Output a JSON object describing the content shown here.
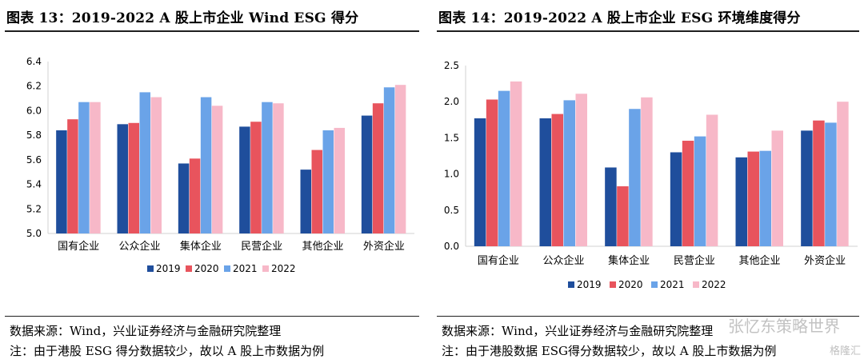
{
  "colors": {
    "2019": "#1f4e9c",
    "2020": "#e8545d",
    "2021": "#6aa3e8",
    "2022": "#f7b8c8",
    "rule": "#1f1f1f",
    "axis": "#d0d0d0"
  },
  "left": {
    "title": "图表 13：2019-2022 A 股上市企业 Wind ESG 得分",
    "note1": "数据来源：Wind，兴业证券经济与金融研究院整理",
    "note2": "注：由于港股 ESG 得分数据较少，故以 A 股上市数据为例"
  },
  "right": {
    "title": "图表 14：2019-2022 A 股上市企业 ESG 环境维度得分",
    "note1": "数据来源：Wind，兴业证券经济与金融研究院整理",
    "note2": "注：由于港股数据 ESG得分数据较少，故以 A 股上市数据为例"
  },
  "watermark": {
    "text": "张忆东策略世界",
    "source": "格隆汇"
  },
  "chart_data": [
    {
      "type": "bar",
      "title": "图表 13：2019-2022 A 股上市企业 Wind ESG 得分",
      "categories": [
        "国有企业",
        "公众企业",
        "集体企业",
        "民营企业",
        "其他企业",
        "外资企业"
      ],
      "series": [
        {
          "name": "2019",
          "values": [
            5.84,
            5.89,
            5.57,
            5.87,
            5.52,
            5.96
          ]
        },
        {
          "name": "2020",
          "values": [
            5.93,
            5.9,
            5.61,
            5.91,
            5.68,
            6.06
          ]
        },
        {
          "name": "2021",
          "values": [
            6.07,
            6.15,
            6.11,
            6.07,
            5.84,
            6.19
          ]
        },
        {
          "name": "2022",
          "values": [
            6.07,
            6.11,
            6.04,
            6.06,
            5.86,
            6.21
          ]
        }
      ],
      "yticks": [
        "5.0",
        "5.2",
        "5.4",
        "5.6",
        "5.8",
        "6.0",
        "6.2",
        "6.4"
      ],
      "ylim": [
        5.0,
        6.4
      ],
      "grid": false,
      "legend": "bottom"
    },
    {
      "type": "bar",
      "title": "图表 14：2019-2022 A 股上市企业 ESG 环境维度得分",
      "categories": [
        "国有企业",
        "公众企业",
        "集体企业",
        "民营企业",
        "其他企业",
        "外资企业"
      ],
      "series": [
        {
          "name": "2019",
          "values": [
            1.77,
            1.77,
            1.09,
            1.3,
            1.23,
            1.6
          ]
        },
        {
          "name": "2020",
          "values": [
            2.03,
            1.83,
            0.83,
            1.46,
            1.31,
            1.74
          ]
        },
        {
          "name": "2021",
          "values": [
            2.15,
            2.02,
            1.9,
            1.52,
            1.32,
            1.71
          ]
        },
        {
          "name": "2022",
          "values": [
            2.28,
            2.11,
            2.06,
            1.82,
            1.6,
            2.0
          ]
        }
      ],
      "yticks": [
        "0.0",
        "0.5",
        "1.0",
        "1.5",
        "2.0",
        "2.5"
      ],
      "ylim": [
        0.0,
        2.5
      ],
      "grid": false,
      "legend": "bottom"
    }
  ]
}
